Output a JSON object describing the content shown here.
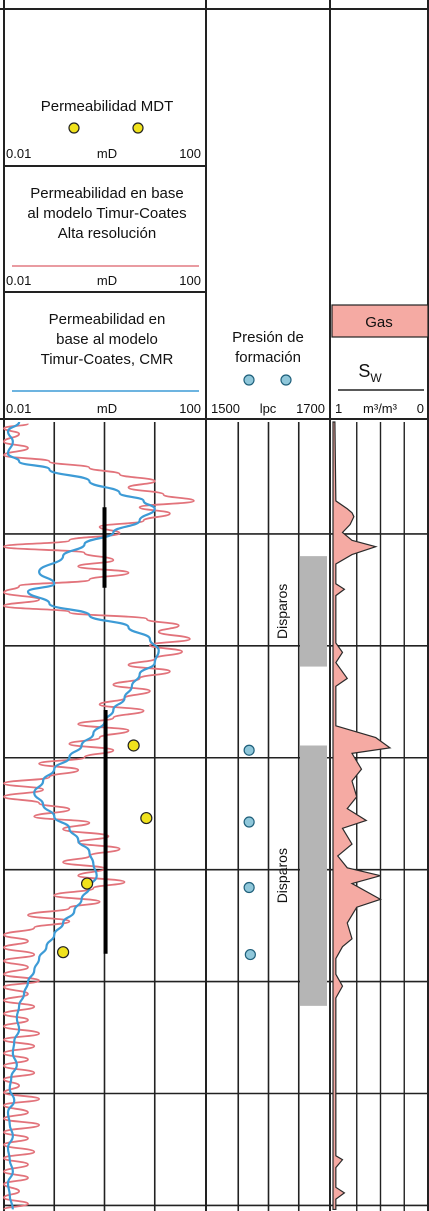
{
  "colors": {
    "red_curve": "#e2737b",
    "blue_curve": "#3d9bd6",
    "gas_fill": "#f5aaa3",
    "perf_gray": "#b5b5b5",
    "mdt_point": "#f0e21c",
    "pressure_point": "#8fc7da",
    "grid": "#222222",
    "header_underline_red": "#e27a82",
    "header_underline_blue": "#3d9bd6"
  },
  "tracks": {
    "mdt": {
      "title": "Permeabilidad MDT",
      "min": "0.01",
      "unit": "mD",
      "max": "100"
    },
    "highres": {
      "title_lines": [
        "Permeabilidad en base",
        "al modelo Timur-Coates",
        "Alta resolución"
      ],
      "min": "0.01",
      "unit": "mD",
      "max": "100"
    },
    "cmr": {
      "title_lines": [
        "Permeabilidad en",
        "base al modelo",
        "Timur-Coates, CMR"
      ],
      "min": "0.01",
      "unit": "mD",
      "max": "100"
    },
    "pressure": {
      "title_lines": [
        "Presión de",
        "formación"
      ],
      "min": "1500",
      "unit": "lpc",
      "max": "1700"
    },
    "fluid": {
      "gas_label": "Gas",
      "sw_label": "S",
      "sw_sub": "W",
      "min": "1",
      "unit": "m³/m³",
      "max": "0"
    }
  },
  "perforations": [
    {
      "label": "Disparos",
      "top": 0.17,
      "bottom": 0.31
    },
    {
      "label": "Disparos",
      "top": 0.41,
      "bottom": 0.74
    }
  ],
  "chart_data": {
    "type": "line",
    "x_scale": "log",
    "xlim": [
      0.01,
      100
    ],
    "y_relative_depth": "0 = top of plotted interval, 1 = bottom",
    "series": [
      {
        "curve": "red",
        "points": [
          [
            0.03,
            0.002
          ],
          [
            0.01,
            0.008
          ],
          [
            0.02,
            0.015
          ],
          [
            0.01,
            0.025
          ],
          [
            0.03,
            0.033
          ],
          [
            0.01,
            0.042
          ],
          [
            0.08,
            0.05
          ],
          [
            0.5,
            0.058
          ],
          [
            2,
            0.066
          ],
          [
            10,
            0.075
          ],
          [
            3,
            0.083
          ],
          [
            15,
            0.092
          ],
          [
            60,
            0.1
          ],
          [
            5,
            0.108
          ],
          [
            20,
            0.116
          ],
          [
            6,
            0.125
          ],
          [
            0.8,
            0.133
          ],
          [
            2,
            0.141
          ],
          [
            0.2,
            0.15
          ],
          [
            0.01,
            0.158
          ],
          [
            0.4,
            0.166
          ],
          [
            1.5,
            0.175
          ],
          [
            0.3,
            0.183
          ],
          [
            3,
            0.191
          ],
          [
            0.5,
            0.2
          ],
          [
            0.02,
            0.208
          ],
          [
            0.01,
            0.216
          ],
          [
            0.05,
            0.225
          ],
          [
            0.01,
            0.233
          ],
          [
            0.2,
            0.241
          ],
          [
            7,
            0.25
          ],
          [
            30,
            0.258
          ],
          [
            12,
            0.266
          ],
          [
            50,
            0.275
          ],
          [
            8,
            0.283
          ],
          [
            35,
            0.291
          ],
          [
            10,
            0.3
          ],
          [
            3,
            0.308
          ],
          [
            20,
            0.316
          ],
          [
            5,
            0.325
          ],
          [
            1.5,
            0.333
          ],
          [
            8,
            0.341
          ],
          [
            2.5,
            0.35
          ],
          [
            0.8,
            0.358
          ],
          [
            6,
            0.366
          ],
          [
            1.5,
            0.375
          ],
          [
            0.3,
            0.383
          ],
          [
            3,
            0.391
          ],
          [
            0.8,
            0.4
          ],
          [
            0.2,
            0.408
          ],
          [
            1.5,
            0.416
          ],
          [
            0.4,
            0.425
          ],
          [
            0.05,
            0.433
          ],
          [
            0.3,
            0.441
          ],
          [
            0.08,
            0.45
          ],
          [
            0.01,
            0.458
          ],
          [
            0.06,
            0.466
          ],
          [
            0.01,
            0.475
          ],
          [
            0.05,
            0.483
          ],
          [
            0.2,
            0.491
          ],
          [
            0.04,
            0.5
          ],
          [
            0.5,
            0.508
          ],
          [
            0.15,
            0.516
          ],
          [
            1.2,
            0.525
          ],
          [
            0.3,
            0.533
          ],
          [
            2,
            0.541
          ],
          [
            0.5,
            0.55
          ],
          [
            0.15,
            0.558
          ],
          [
            1,
            0.566
          ],
          [
            0.3,
            0.575
          ],
          [
            2.5,
            0.583
          ],
          [
            0.6,
            0.591
          ],
          [
            0.1,
            0.6
          ],
          [
            0.8,
            0.608
          ],
          [
            0.2,
            0.616
          ],
          [
            0.03,
            0.625
          ],
          [
            0.2,
            0.633
          ],
          [
            0.04,
            0.641
          ],
          [
            0.01,
            0.65
          ],
          [
            0.03,
            0.658
          ],
          [
            0.01,
            0.666
          ],
          [
            0.04,
            0.675
          ],
          [
            0.01,
            0.683
          ],
          [
            0.03,
            0.691
          ],
          [
            0.01,
            0.7
          ],
          [
            0.05,
            0.708
          ],
          [
            0.01,
            0.716
          ],
          [
            0.03,
            0.725
          ],
          [
            0.01,
            0.733
          ],
          [
            0.04,
            0.741
          ],
          [
            0.01,
            0.75
          ],
          [
            0.03,
            0.758
          ],
          [
            0.01,
            0.766
          ],
          [
            0.05,
            0.775
          ],
          [
            0.01,
            0.783
          ],
          [
            0.04,
            0.791
          ],
          [
            0.01,
            0.8
          ],
          [
            0.03,
            0.808
          ],
          [
            0.01,
            0.816
          ],
          [
            0.04,
            0.825
          ],
          [
            0.01,
            0.833
          ],
          [
            0.02,
            0.841
          ],
          [
            0.01,
            0.85
          ],
          [
            0.05,
            0.858
          ],
          [
            0.01,
            0.866
          ],
          [
            0.03,
            0.875
          ],
          [
            0.01,
            0.883
          ],
          [
            0.05,
            0.891
          ],
          [
            0.01,
            0.9
          ],
          [
            0.03,
            0.908
          ],
          [
            0.01,
            0.916
          ],
          [
            0.04,
            0.925
          ],
          [
            0.01,
            0.933
          ],
          [
            0.03,
            0.941
          ],
          [
            0.01,
            0.95
          ],
          [
            0.03,
            0.958
          ],
          [
            0.01,
            0.966
          ],
          [
            0.02,
            0.975
          ],
          [
            0.01,
            0.983
          ],
          [
            0.03,
            0.991
          ],
          [
            0.01,
            0.998
          ]
        ]
      },
      {
        "curve": "blue",
        "points": [
          [
            0.02,
            0.0
          ],
          [
            0.012,
            0.012
          ],
          [
            0.015,
            0.025
          ],
          [
            0.012,
            0.04
          ],
          [
            0.02,
            0.05
          ],
          [
            0.08,
            0.06
          ],
          [
            0.5,
            0.075
          ],
          [
            2,
            0.09
          ],
          [
            6,
            0.1
          ],
          [
            10,
            0.11
          ],
          [
            5,
            0.125
          ],
          [
            1.5,
            0.14
          ],
          [
            0.4,
            0.155
          ],
          [
            0.15,
            0.17
          ],
          [
            0.05,
            0.19
          ],
          [
            0.1,
            0.205
          ],
          [
            0.03,
            0.215
          ],
          [
            0.08,
            0.23
          ],
          [
            0.5,
            0.245
          ],
          [
            3,
            0.26
          ],
          [
            8,
            0.275
          ],
          [
            12,
            0.29
          ],
          [
            10,
            0.305
          ],
          [
            5,
            0.32
          ],
          [
            3.5,
            0.335
          ],
          [
            2.5,
            0.35
          ],
          [
            1.5,
            0.365
          ],
          [
            1.0,
            0.38
          ],
          [
            0.6,
            0.395
          ],
          [
            0.35,
            0.41
          ],
          [
            0.2,
            0.425
          ],
          [
            0.1,
            0.44
          ],
          [
            0.06,
            0.455
          ],
          [
            0.04,
            0.47
          ],
          [
            0.06,
            0.485
          ],
          [
            0.1,
            0.5
          ],
          [
            0.2,
            0.515
          ],
          [
            0.3,
            0.53
          ],
          [
            0.5,
            0.545
          ],
          [
            0.6,
            0.56
          ],
          [
            0.7,
            0.575
          ],
          [
            0.5,
            0.59
          ],
          [
            0.35,
            0.605
          ],
          [
            0.25,
            0.62
          ],
          [
            0.15,
            0.635
          ],
          [
            0.1,
            0.65
          ],
          [
            0.07,
            0.665
          ],
          [
            0.05,
            0.68
          ],
          [
            0.04,
            0.695
          ],
          [
            0.03,
            0.71
          ],
          [
            0.025,
            0.725
          ],
          [
            0.02,
            0.74
          ],
          [
            0.018,
            0.755
          ],
          [
            0.02,
            0.77
          ],
          [
            0.016,
            0.785
          ],
          [
            0.015,
            0.8
          ],
          [
            0.018,
            0.815
          ],
          [
            0.014,
            0.83
          ],
          [
            0.013,
            0.845
          ],
          [
            0.016,
            0.86
          ],
          [
            0.012,
            0.875
          ],
          [
            0.013,
            0.89
          ],
          [
            0.015,
            0.905
          ],
          [
            0.012,
            0.92
          ],
          [
            0.013,
            0.935
          ],
          [
            0.015,
            0.95
          ],
          [
            0.012,
            0.965
          ],
          [
            0.013,
            0.98
          ],
          [
            0.015,
            0.998
          ]
        ]
      }
    ],
    "mdt_points": [
      {
        "perm": 3.8,
        "depth": 0.41
      },
      {
        "perm": 6.8,
        "depth": 0.502
      },
      {
        "perm": 0.45,
        "depth": 0.585
      },
      {
        "perm": 0.15,
        "depth": 0.672
      }
    ],
    "pressure_points": [
      {
        "pressure": 1568,
        "depth": 0.416
      },
      {
        "pressure": 1568,
        "depth": 0.507
      },
      {
        "pressure": 1568,
        "depth": 0.59
      },
      {
        "pressure": 1570,
        "depth": 0.675
      }
    ],
    "cmr_bars": [
      {
        "perm": 1.0,
        "top": 0.108,
        "bottom": 0.21
      },
      {
        "perm": 1.05,
        "top": 0.365,
        "bottom": 0.674
      }
    ],
    "gas": {
      "points": [
        [
          0.98,
          0.0
        ],
        [
          0.97,
          0.1
        ],
        [
          0.85,
          0.11
        ],
        [
          0.8,
          0.115
        ],
        [
          0.78,
          0.12
        ],
        [
          0.82,
          0.13
        ],
        [
          0.9,
          0.14
        ],
        [
          0.8,
          0.15
        ],
        [
          0.55,
          0.158
        ],
        [
          0.8,
          0.168
        ],
        [
          0.97,
          0.18
        ],
        [
          0.97,
          0.205
        ],
        [
          0.88,
          0.212
        ],
        [
          0.97,
          0.22
        ],
        [
          0.97,
          0.28
        ],
        [
          0.9,
          0.292
        ],
        [
          0.97,
          0.305
        ],
        [
          0.97,
          0.305
        ],
        [
          0.85,
          0.325
        ],
        [
          0.97,
          0.335
        ],
        [
          0.97,
          0.385
        ],
        [
          0.55,
          0.4
        ],
        [
          0.4,
          0.413
        ],
        [
          0.8,
          0.42
        ],
        [
          0.7,
          0.44
        ],
        [
          0.8,
          0.455
        ],
        [
          0.75,
          0.475
        ],
        [
          0.85,
          0.49
        ],
        [
          0.65,
          0.505
        ],
        [
          0.9,
          0.515
        ],
        [
          0.8,
          0.535
        ],
        [
          0.95,
          0.55
        ],
        [
          0.85,
          0.565
        ],
        [
          0.5,
          0.575
        ],
        [
          0.8,
          0.585
        ],
        [
          0.5,
          0.605
        ],
        [
          0.75,
          0.615
        ],
        [
          0.85,
          0.635
        ],
        [
          0.8,
          0.655
        ],
        [
          0.9,
          0.665
        ],
        [
          0.97,
          0.68
        ],
        [
          0.97,
          0.7
        ],
        [
          0.9,
          0.715
        ],
        [
          0.97,
          0.73
        ],
        [
          0.97,
          0.93
        ],
        [
          0.9,
          0.935
        ],
        [
          0.97,
          0.945
        ],
        [
          0.97,
          0.97
        ],
        [
          0.88,
          0.977
        ],
        [
          0.97,
          0.985
        ],
        [
          0.97,
          0.998
        ]
      ]
    }
  }
}
